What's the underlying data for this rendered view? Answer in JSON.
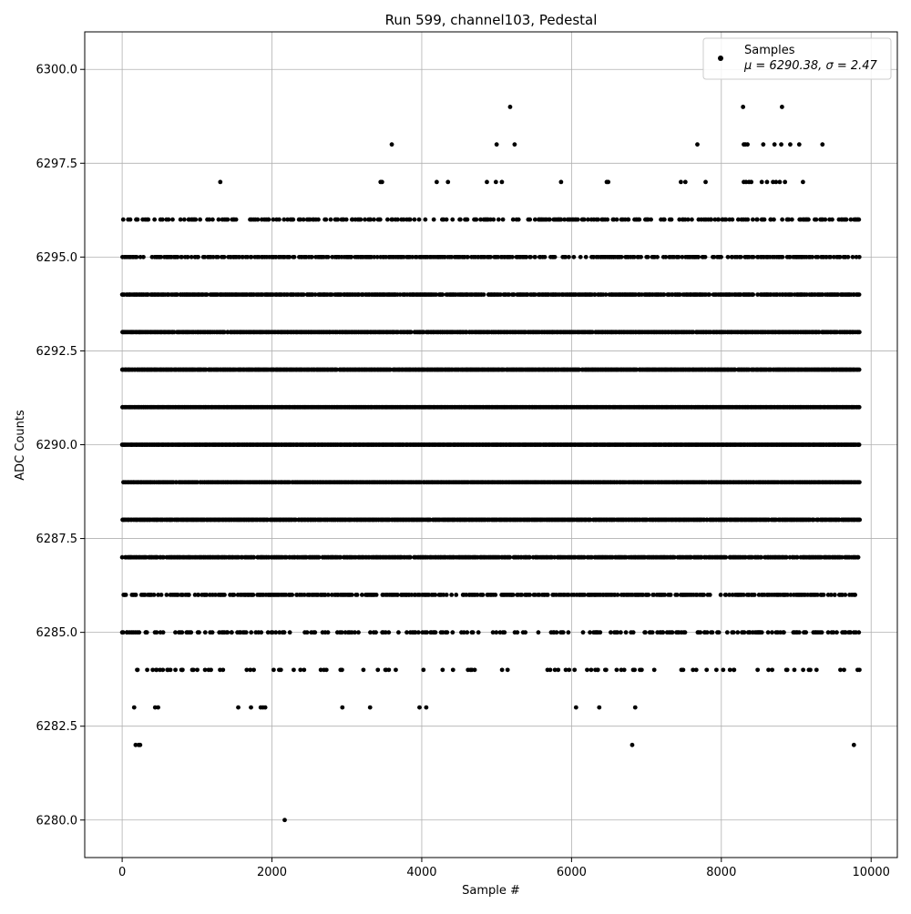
{
  "chart_data": {
    "type": "scatter",
    "title": "Run 599, channel103, Pedestal",
    "xlabel": "Sample #",
    "ylabel": "ADC Counts",
    "xlim": [
      -500,
      10350
    ],
    "ylim": [
      6279,
      6301
    ],
    "xticks": [
      0,
      2000,
      4000,
      6000,
      8000,
      10000
    ],
    "xtick_labels": [
      "0",
      "2000",
      "4000",
      "6000",
      "8000",
      "10000"
    ],
    "yticks": [
      6280.0,
      6282.5,
      6285.0,
      6287.5,
      6290.0,
      6292.5,
      6295.0,
      6297.5,
      6300.0
    ],
    "ytick_labels": [
      "6280.0",
      "6282.5",
      "6285.0",
      "6287.5",
      "6290.0",
      "6292.5",
      "6295.0",
      "6297.5",
      "6300.0"
    ],
    "grid": true,
    "legend_position": "top-right",
    "legend": {
      "label": "Samples",
      "stats": "μ = 6290.38, σ = 2.47"
    },
    "marker_color": "#000000",
    "series": [
      {
        "name": "Samples",
        "x_range": [
          0,
          9850
        ],
        "levels": [
          {
            "y": 6300,
            "density": 0
          },
          {
            "y": 6299,
            "points": [
              5180,
              8290,
              8810
            ]
          },
          {
            "y": 6298,
            "points": [
              3600,
              5000,
              5240,
              7680,
              8300,
              8320,
              8350,
              8560,
              8710,
              8800,
              8920,
              9040,
              9350
            ]
          },
          {
            "y": 6297,
            "points": [
              1310,
              3450,
              3470,
              4200,
              4350,
              4870,
              4990,
              5070,
              5860,
              6470,
              6490,
              7460,
              7520,
              7790,
              8300,
              8330,
              8370,
              8400,
              8540,
              8610,
              8690,
              8730,
              8780,
              8850,
              9090
            ]
          },
          {
            "y": 6296,
            "density": 0.35
          },
          {
            "y": 6295,
            "density": 0.55
          },
          {
            "y": 6294,
            "density": 0.8
          },
          {
            "y": 6293,
            "density": 0.95
          },
          {
            "y": 6292,
            "density": 0.97
          },
          {
            "y": 6291,
            "density": 1.0
          },
          {
            "y": 6290,
            "density": 1.0
          },
          {
            "y": 6289,
            "density": 0.97
          },
          {
            "y": 6288,
            "density": 0.95
          },
          {
            "y": 6287,
            "density": 0.85
          },
          {
            "y": 6286,
            "density": 0.55
          },
          {
            "y": 6285,
            "density": 0.3
          },
          {
            "y": 6284,
            "density": 0.12
          },
          {
            "y": 6283,
            "points": [
              160,
              440,
              480,
              1550,
              1720,
              1850,
              1880,
              1910,
              2940,
              3310,
              3970,
              4060,
              6060,
              6370,
              6850
            ]
          },
          {
            "y": 6282,
            "points": [
              180,
              220,
              240,
              6810,
              9770
            ]
          },
          {
            "y": 6280,
            "points": [
              2170
            ]
          }
        ]
      }
    ]
  }
}
